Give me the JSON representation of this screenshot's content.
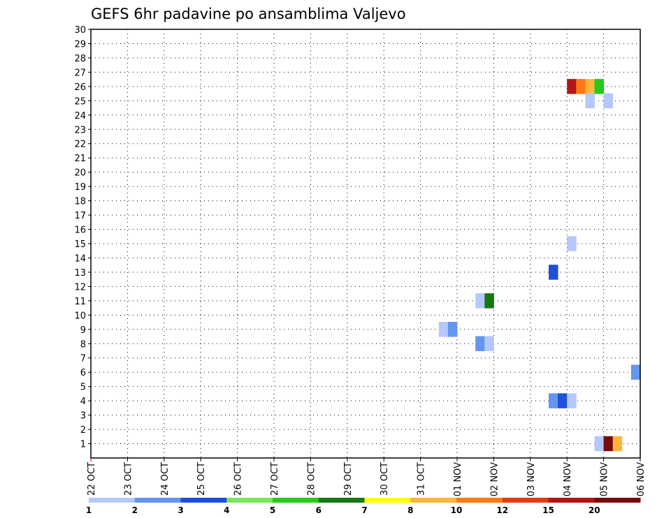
{
  "chart_data": {
    "type": "heatmap",
    "title": "GEFS 6hr padavine po ansamblima Valjevo",
    "xlabel": "",
    "ylabel": "",
    "x_tick_labels": [
      "22 OCT",
      "23 OCT",
      "24 OCT",
      "25 OCT",
      "26 OCT",
      "27 OCT",
      "28 OCT",
      "29 OCT",
      "30 OCT",
      "31 OCT",
      "01 NOV",
      "02 NOV",
      "03 NOV",
      "04 NOV",
      "05 NOV",
      "06 NOV"
    ],
    "xlim": [
      0,
      60
    ],
    "y_ticks": [
      1,
      2,
      3,
      4,
      5,
      6,
      7,
      8,
      9,
      10,
      11,
      12,
      13,
      14,
      15,
      16,
      17,
      18,
      19,
      20,
      21,
      22,
      23,
      24,
      25,
      26,
      27,
      28,
      29,
      30
    ],
    "ylim": [
      0,
      30
    ],
    "grid": true,
    "colorbar": {
      "levels": [
        "1",
        "2",
        "3",
        "4",
        "5",
        "6",
        "7",
        "8",
        "10",
        "12",
        "15",
        "20"
      ],
      "colors": [
        "#b4c8fa",
        "#6496f0",
        "#1e50dc",
        "#78e65a",
        "#28c81e",
        "#147814",
        "#ffff00",
        "#ffb43c",
        "#ff7814",
        "#e13c14",
        "#b41414",
        "#780a0a"
      ]
    },
    "cells": [
      {
        "member": 26,
        "step": 53,
        "value": 16
      },
      {
        "member": 26,
        "step": 54,
        "value": 11
      },
      {
        "member": 26,
        "step": 55,
        "value": 9
      },
      {
        "member": 26,
        "step": 56,
        "value": 5.5
      },
      {
        "member": 25,
        "step": 55,
        "value": 1.5
      },
      {
        "member": 25,
        "step": 57,
        "value": 1.5
      },
      {
        "member": 15,
        "step": 53,
        "value": 1.5
      },
      {
        "member": 13,
        "step": 51,
        "value": 3.5
      },
      {
        "member": 11,
        "step": 43,
        "value": 1.5
      },
      {
        "member": 11,
        "step": 44,
        "value": 6.5
      },
      {
        "member": 9,
        "step": 39,
        "value": 1.5
      },
      {
        "member": 9,
        "step": 40,
        "value": 2.5
      },
      {
        "member": 8,
        "step": 43,
        "value": 2.5
      },
      {
        "member": 8,
        "step": 44,
        "value": 1.5
      },
      {
        "member": 6,
        "step": 60,
        "value": 2.5
      },
      {
        "member": 4,
        "step": 51,
        "value": 2.5
      },
      {
        "member": 4,
        "step": 52,
        "value": 3.5
      },
      {
        "member": 4,
        "step": 53,
        "value": 1.5
      },
      {
        "member": 1,
        "step": 56,
        "value": 1.5
      },
      {
        "member": 1,
        "step": 57,
        "value": 25
      },
      {
        "member": 1,
        "step": 58,
        "value": 9
      }
    ]
  }
}
